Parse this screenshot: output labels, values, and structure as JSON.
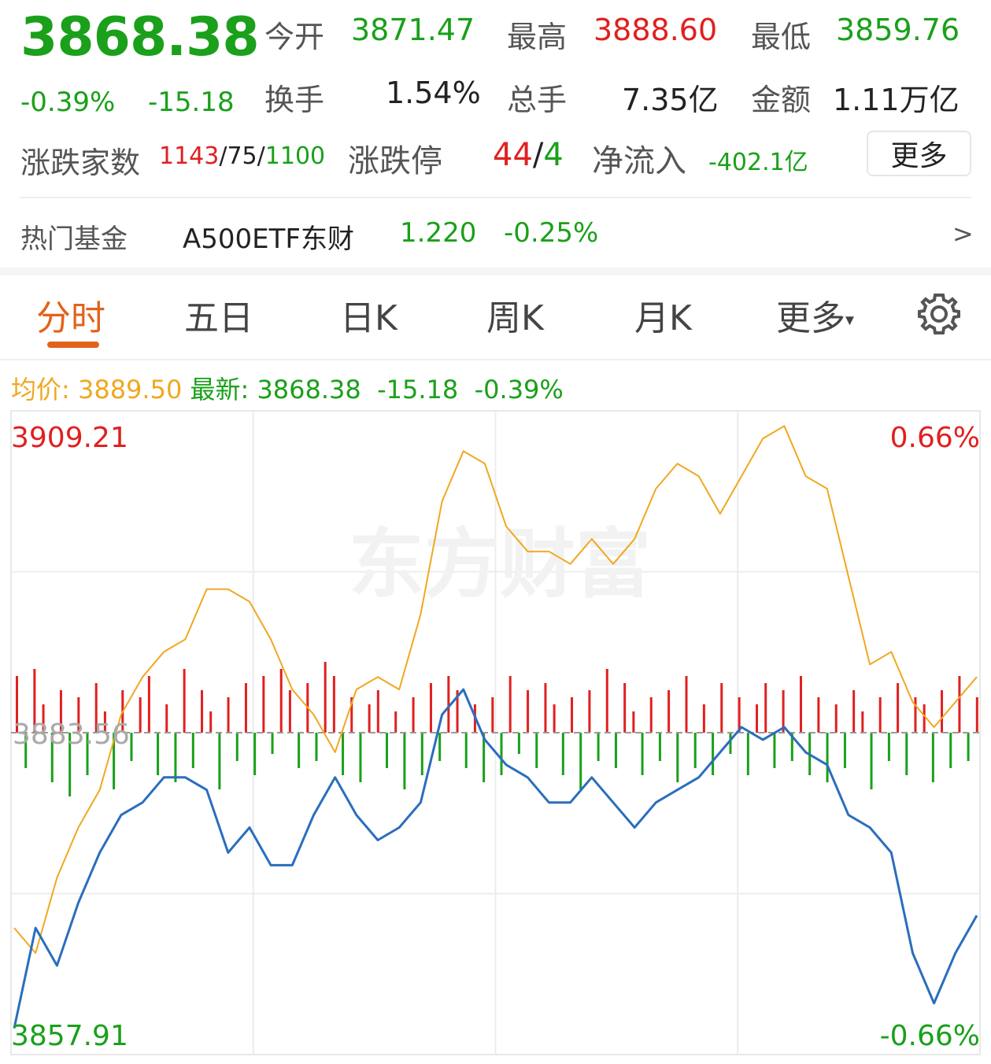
{
  "quote": {
    "price": "3868.38",
    "change_pct": "-0.39%",
    "change": "-15.18",
    "open_label": "今开",
    "open": "3871.47",
    "high_label": "最高",
    "high": "3888.60",
    "low_label": "最低",
    "low": "3859.76",
    "turnover_label": "换手",
    "turnover": "1.54%",
    "volume_label": "总手",
    "volume": "7.35亿",
    "amount_label": "金额",
    "amount": "1.11万亿"
  },
  "breadth": {
    "label": "涨跌家数",
    "up": "1143",
    "sep1": "/",
    "flat": "75",
    "sep2": "/",
    "down": "1100",
    "limit_label": "涨跌停",
    "limit_up": "44",
    "limit_sep": "/",
    "limit_down": "4",
    "netflow_label": "净流入",
    "netflow": "-402.1亿",
    "more_button": "更多"
  },
  "hot_fund": {
    "label": "热门基金",
    "name": "A500ETF东财",
    "price": "1.220",
    "change": "-0.25%",
    "arrow": ">"
  },
  "tabs": [
    {
      "label": "分时"
    },
    {
      "label": "五日"
    },
    {
      "label": "日K"
    },
    {
      "label": "周K"
    },
    {
      "label": "月K"
    },
    {
      "label": "更多"
    }
  ],
  "tab_more_arrow": "▾",
  "settings_icon": "gear-icon",
  "info_line": {
    "avg_label": "均价:",
    "avg_value": "3889.50",
    "last_label": "最新:",
    "last_value": "3868.38",
    "change": "-15.18",
    "change_pct": "-0.39%"
  },
  "watermark": "东方财富",
  "colors": {
    "up": "#e02020",
    "down": "#1aa01a",
    "avg_line": "#f0a820",
    "price_line": "#2a6ebd",
    "accent": "#e2621a"
  },
  "chart_data": {
    "type": "line",
    "y_top_label": "3909.21",
    "y_mid_label": "3883.56",
    "y_bottom_label": "3857.91",
    "pct_top_label": "0.66%",
    "pct_bottom_label": "-0.66%",
    "ylim": [
      3857.91,
      3909.21
    ],
    "baseline": 3883.56,
    "series": [
      {
        "name": "均价",
        "values": [
          3868,
          3866,
          3872,
          3876,
          3879,
          3885,
          3888,
          3890,
          3891,
          3895,
          3895,
          3894,
          3891,
          3887,
          3885,
          3882,
          3887,
          3888,
          3887,
          3893,
          3902,
          3906,
          3905,
          3900,
          3898,
          3898,
          3897,
          3899,
          3897,
          3899,
          3903,
          3905,
          3904,
          3901,
          3904,
          3907,
          3908,
          3904,
          3903,
          3896,
          3889,
          3890,
          3886,
          3884,
          3886,
          3888
        ]
      },
      {
        "name": "最新",
        "values": [
          3860,
          3868,
          3865,
          3870,
          3874,
          3877,
          3878,
          3880,
          3880,
          3879,
          3874,
          3876,
          3873,
          3873,
          3877,
          3880,
          3877,
          3875,
          3876,
          3878,
          3885,
          3887,
          3883,
          3881,
          3880,
          3878,
          3878,
          3880,
          3878,
          3876,
          3878,
          3879,
          3880,
          3882,
          3884,
          3883,
          3884,
          3882,
          3881,
          3877,
          3876,
          3874,
          3866,
          3862,
          3866,
          3869
        ]
      }
    ],
    "volume_bars": [
      8,
      -5,
      9,
      4,
      -7,
      6,
      -9,
      5,
      -6,
      7,
      3,
      -8,
      6,
      -4,
      5,
      8,
      -6,
      4,
      -7,
      9,
      -5,
      6,
      3,
      -8,
      5,
      -4,
      7,
      -6,
      8,
      -3,
      9,
      6,
      -5,
      7,
      -4,
      10,
      8,
      -6,
      5,
      -7,
      4,
      6,
      -5,
      3,
      -8,
      5,
      -6,
      7,
      -4,
      8,
      6,
      -5,
      4,
      -7,
      5,
      -6,
      8,
      -3,
      6,
      -5,
      7,
      4,
      -6,
      5,
      -8,
      6,
      -4,
      9,
      -5,
      7,
      3,
      -6,
      5,
      -4,
      6,
      -7,
      8,
      -5,
      4,
      -6,
      7,
      -3,
      5,
      -6,
      4,
      7,
      -5,
      6,
      -4,
      8,
      -6,
      5,
      -7,
      4,
      -5,
      6,
      3,
      -8,
      5,
      -4,
      7,
      -6,
      5,
      4,
      -7,
      6,
      -5,
      8,
      -4,
      5
    ]
  }
}
